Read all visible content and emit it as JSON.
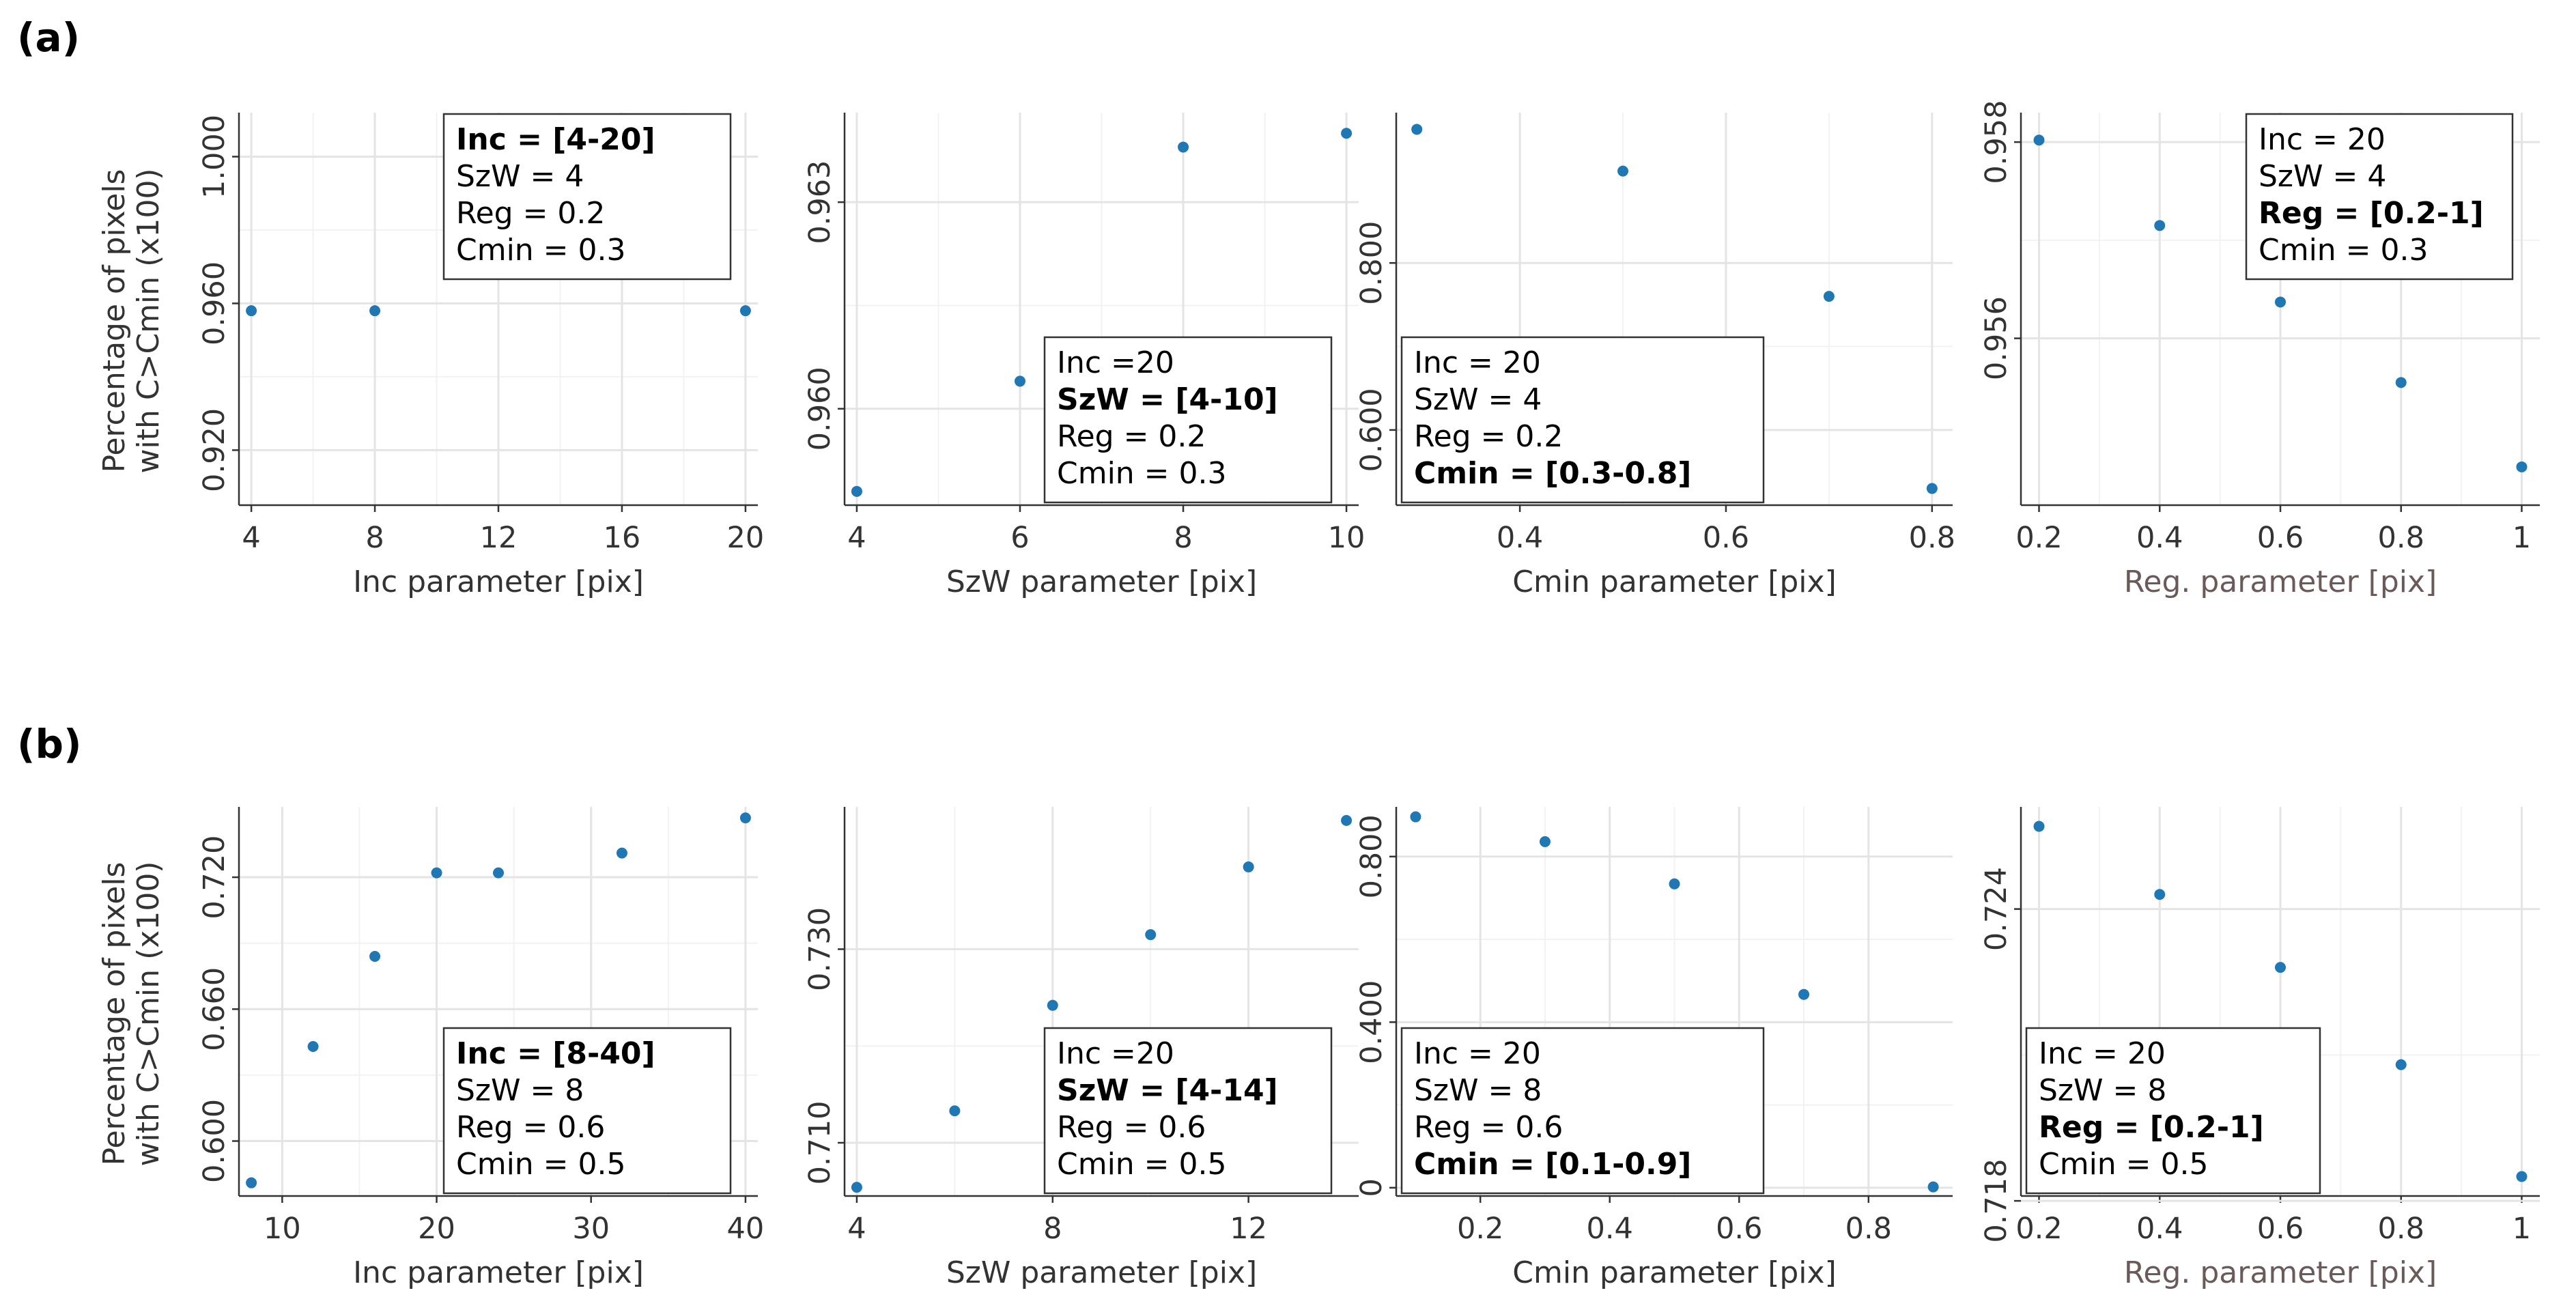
{
  "figure": {
    "row_labels": [
      "(a)",
      "(b)"
    ],
    "shared_ylabel_line1": "Percentage of pixels",
    "shared_ylabel_line2": "with C>Cmin (x100)"
  },
  "chart_data": [
    {
      "id": "a1",
      "type": "scatter",
      "row": 0,
      "col": 0,
      "xlabel": "Inc parameter [pix]",
      "xlabel_muted": false,
      "x": [
        4,
        8,
        20
      ],
      "y": [
        0.958,
        0.958,
        0.958
      ],
      "xlim": [
        3.6,
        20.4
      ],
      "ylim": [
        0.905,
        1.012
      ],
      "xticks": [
        4,
        8,
        12,
        16,
        20
      ],
      "xtick_labels": [
        "4",
        "8",
        "12",
        "16",
        "20"
      ],
      "yticks": [
        0.92,
        0.96,
        1.0
      ],
      "ytick_labels": [
        "0.920",
        "0.960",
        "1.000"
      ],
      "legend": {
        "position": "top-right",
        "lines": [
          {
            "text": "Inc = [4-20]",
            "bold": true
          },
          {
            "text": "SzW = 4",
            "bold": false
          },
          {
            "text": "Reg = 0.2",
            "bold": false
          },
          {
            "text": "Cmin = 0.3",
            "bold": false
          }
        ]
      }
    },
    {
      "id": "a2",
      "type": "scatter",
      "row": 0,
      "col": 1,
      "xlabel": "SzW parameter [pix]",
      "xlabel_muted": false,
      "x": [
        4,
        6,
        8,
        10
      ],
      "y": [
        0.9588,
        0.9604,
        0.9638,
        0.964
      ],
      "xlim": [
        3.85,
        10.15
      ],
      "ylim": [
        0.9586,
        0.9643
      ],
      "xticks": [
        4,
        6,
        8,
        10
      ],
      "xtick_labels": [
        "4",
        "6",
        "8",
        "10"
      ],
      "yticks": [
        0.96,
        0.963
      ],
      "ytick_labels": [
        "0.960",
        "0.963"
      ],
      "legend": {
        "position": "bottom-right",
        "lines": [
          {
            "text": "Inc =20",
            "bold": false
          },
          {
            "text": "SzW = [4-10]",
            "bold": true
          },
          {
            "text": "Reg = 0.2",
            "bold": false
          },
          {
            "text": "Cmin = 0.3",
            "bold": false
          }
        ]
      }
    },
    {
      "id": "a3",
      "type": "scatter",
      "row": 0,
      "col": 2,
      "xlabel": "Cmin parameter [pix]",
      "xlabel_muted": false,
      "x": [
        0.3,
        0.5,
        0.7,
        0.8
      ],
      "y": [
        0.96,
        0.91,
        0.76,
        0.53
      ],
      "xlim": [
        0.28,
        0.82
      ],
      "ylim": [
        0.51,
        0.98
      ],
      "xticks": [
        0.4,
        0.6,
        0.8
      ],
      "xtick_labels": [
        "0.4",
        "0.6",
        "0.8"
      ],
      "yticks": [
        0.6,
        0.8
      ],
      "ytick_labels": [
        "0.600",
        "0.800"
      ],
      "legend": {
        "position": "bottom-left",
        "lines": [
          {
            "text": "Inc = 20",
            "bold": false
          },
          {
            "text": "SzW = 4",
            "bold": false
          },
          {
            "text": "Reg = 0.2",
            "bold": false
          },
          {
            "text": "Cmin = [0.3-0.8]",
            "bold": true
          }
        ]
      }
    },
    {
      "id": "a4",
      "type": "scatter",
      "row": 0,
      "col": 3,
      "xlabel": "Reg. parameter [pix]",
      "xlabel_muted": true,
      "x": [
        0.2,
        0.4,
        0.6,
        0.8,
        1.0
      ],
      "y": [
        0.95802,
        0.95715,
        0.95637,
        0.95555,
        0.95469
      ],
      "xlim": [
        0.17,
        1.03
      ],
      "ylim": [
        0.9543,
        0.9583
      ],
      "xticks": [
        0.2,
        0.4,
        0.6,
        0.8,
        1.0
      ],
      "xtick_labels": [
        "0.2",
        "0.4",
        "0.6",
        "0.8",
        "1"
      ],
      "yticks": [
        0.956,
        0.958
      ],
      "ytick_labels": [
        "0.956",
        "0.958"
      ],
      "legend": {
        "position": "top-right",
        "lines": [
          {
            "text": "Inc = 20",
            "bold": false
          },
          {
            "text": "SzW = 4",
            "bold": false
          },
          {
            "text": "Reg = [0.2-1]",
            "bold": true
          },
          {
            "text": "Cmin = 0.3",
            "bold": false
          }
        ]
      }
    },
    {
      "id": "b1",
      "type": "scatter",
      "row": 1,
      "col": 0,
      "xlabel": "Inc parameter [pix]",
      "xlabel_muted": false,
      "x": [
        8,
        12,
        16,
        20,
        24,
        32,
        40
      ],
      "y": [
        0.581,
        0.643,
        0.684,
        0.722,
        0.722,
        0.731,
        0.747
      ],
      "xlim": [
        7.2,
        40.8
      ],
      "ylim": [
        0.575,
        0.752
      ],
      "xticks": [
        10,
        20,
        30,
        40
      ],
      "xtick_labels": [
        "10",
        "20",
        "30",
        "40"
      ],
      "yticks": [
        0.6,
        0.66,
        0.72
      ],
      "ytick_labels": [
        "0.600",
        "0.660",
        "0.720"
      ],
      "legend": {
        "position": "bottom-right",
        "lines": [
          {
            "text": "Inc = [8-40]",
            "bold": true
          },
          {
            "text": "SzW = 8",
            "bold": false
          },
          {
            "text": "Reg = 0.6",
            "bold": false
          },
          {
            "text": "Cmin = 0.5",
            "bold": false
          }
        ]
      }
    },
    {
      "id": "b2",
      "type": "scatter",
      "row": 1,
      "col": 1,
      "xlabel": "SzW parameter [pix]",
      "xlabel_muted": false,
      "x": [
        4,
        6,
        8,
        10,
        12,
        14
      ],
      "y": [
        0.7054,
        0.7133,
        0.7242,
        0.7315,
        0.7385,
        0.7433
      ],
      "xlim": [
        3.75,
        14.25
      ],
      "ylim": [
        0.7045,
        0.7447
      ],
      "xticks": [
        4,
        8,
        12
      ],
      "xtick_labels": [
        "4",
        "8",
        "12"
      ],
      "yticks": [
        0.71,
        0.73
      ],
      "ytick_labels": [
        "0.710",
        "0.730"
      ],
      "legend": {
        "position": "bottom-right",
        "lines": [
          {
            "text": "Inc =20",
            "bold": false
          },
          {
            "text": "SzW = [4-14]",
            "bold": true
          },
          {
            "text": "Reg = 0.6",
            "bold": false
          },
          {
            "text": "Cmin = 0.5",
            "bold": false
          }
        ]
      }
    },
    {
      "id": "b3",
      "type": "scatter",
      "row": 1,
      "col": 2,
      "xlabel": "Cmin parameter [pix]",
      "xlabel_muted": false,
      "x": [
        0.1,
        0.3,
        0.5,
        0.7,
        0.9
      ],
      "y": [
        0.896,
        0.836,
        0.734,
        0.467,
        0.002
      ],
      "xlim": [
        0.07,
        0.93
      ],
      "ylim": [
        -0.02,
        0.92
      ],
      "xticks": [
        0.2,
        0.4,
        0.6,
        0.8
      ],
      "xtick_labels": [
        "0.2",
        "0.4",
        "0.6",
        "0.8"
      ],
      "yticks": [
        0.0,
        0.4,
        0.8
      ],
      "ytick_labels": [
        "0",
        "0.400",
        "0.800"
      ],
      "legend": {
        "position": "bottom-left",
        "lines": [
          {
            "text": "Inc = 20",
            "bold": false
          },
          {
            "text": "SzW = 8",
            "bold": false
          },
          {
            "text": "Reg = 0.6",
            "bold": false
          },
          {
            "text": "Cmin = [0.1-0.9]",
            "bold": true
          }
        ]
      }
    },
    {
      "id": "b4",
      "type": "scatter",
      "row": 1,
      "col": 3,
      "xlabel": "Reg. parameter [pix]",
      "xlabel_muted": true,
      "x": [
        0.2,
        0.4,
        0.6,
        0.8,
        1.0
      ],
      "y": [
        0.7257,
        0.7243,
        0.7228,
        0.7208,
        0.7185
      ],
      "xlim": [
        0.17,
        1.03
      ],
      "ylim": [
        0.7181,
        0.7261
      ],
      "xticks": [
        0.2,
        0.4,
        0.6,
        0.8,
        1.0
      ],
      "xtick_labels": [
        "0.2",
        "0.4",
        "0.6",
        "0.8",
        "1"
      ],
      "yticks": [
        0.718,
        0.724
      ],
      "ytick_labels": [
        "0.718",
        "0.724"
      ],
      "legend": {
        "position": "bottom-left",
        "lines": [
          {
            "text": "Inc = 20",
            "bold": false
          },
          {
            "text": "SzW = 8",
            "bold": false
          },
          {
            "text": "Reg = [0.2-1]",
            "bold": true
          },
          {
            "text": "Cmin = 0.5",
            "bold": false
          }
        ]
      }
    }
  ]
}
